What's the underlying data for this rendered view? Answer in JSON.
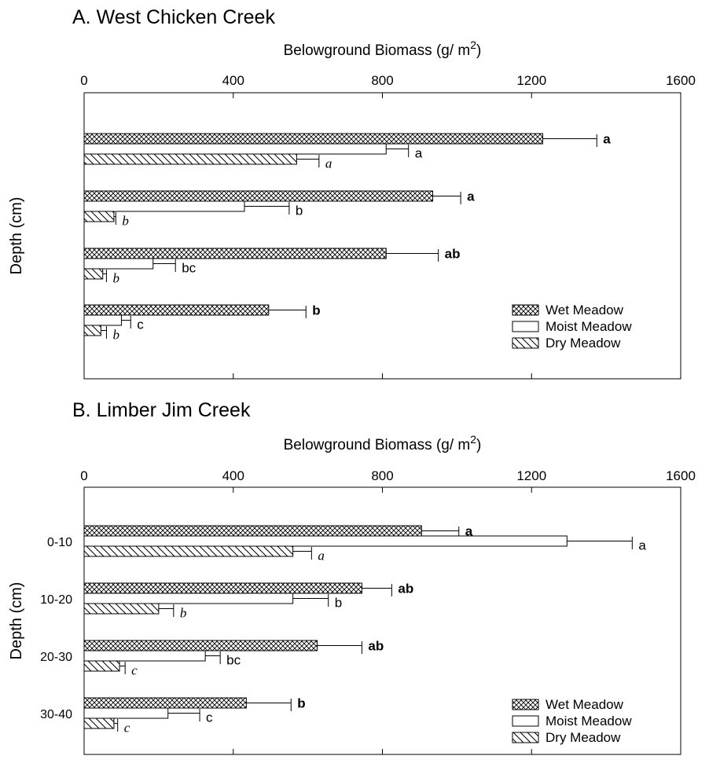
{
  "chart_data": [
    {
      "type": "bar",
      "orientation": "horizontal",
      "title": "A. West Chicken Creek",
      "xlabel": "Belowground Biomass (g/ m2)",
      "xlabel_main": "Belowground Biomass (g/ m",
      "xlabel_sup": "2",
      "xlabel_close": ")",
      "ylabel": "Depth (cm)",
      "xlim": [
        0,
        1600
      ],
      "xticks": [
        "0",
        "400",
        "800",
        "1200",
        "1600"
      ],
      "categories": [
        "",
        "",
        "",
        ""
      ],
      "series": [
        {
          "name": "Wet Meadow",
          "values": [
            1230,
            935,
            810,
            495
          ],
          "errors": [
            145,
            75,
            140,
            100
          ],
          "letters": [
            "a",
            "a",
            "ab",
            "b"
          ],
          "letter_style": "bold"
        },
        {
          "name": "Moist Meadow",
          "values": [
            810,
            430,
            185,
            100
          ],
          "errors": [
            60,
            120,
            60,
            25
          ],
          "letters": [
            "a",
            "b",
            "bc",
            "c"
          ],
          "letter_style": "plain"
        },
        {
          "name": "Dry Meadow",
          "values": [
            570,
            80,
            50,
            45
          ],
          "errors": [
            60,
            5,
            10,
            15
          ],
          "letters": [
            "a",
            "b",
            "b",
            "b"
          ],
          "letter_style": "italic"
        }
      ],
      "legend": "bottom-right"
    },
    {
      "type": "bar",
      "orientation": "horizontal",
      "title": "B. Limber Jim Creek",
      "xlabel": "Belowground Biomass (g/ m2)",
      "xlabel_main": "Belowground Biomass (g/ m",
      "xlabel_sup": "2",
      "xlabel_close": ")",
      "ylabel": "Depth (cm)",
      "xlim": [
        0,
        1600
      ],
      "xticks": [
        "0",
        "400",
        "800",
        "1200",
        "1600"
      ],
      "categories": [
        "0-10",
        "10-20",
        "20-30",
        "30-40"
      ],
      "series": [
        {
          "name": "Wet Meadow",
          "values": [
            905,
            745,
            625,
            435
          ],
          "errors": [
            100,
            80,
            120,
            120
          ],
          "letters": [
            "a",
            "ab",
            "ab",
            "b"
          ],
          "letter_style": "bold"
        },
        {
          "name": "Moist Meadow",
          "values": [
            1295,
            560,
            325,
            225
          ],
          "errors": [
            175,
            95,
            40,
            85
          ],
          "letters": [
            "a",
            "b",
            "bc",
            "c"
          ],
          "letter_style": "plain"
        },
        {
          "name": "Dry Meadow",
          "values": [
            560,
            200,
            95,
            80
          ],
          "errors": [
            50,
            40,
            15,
            10
          ],
          "letters": [
            "a",
            "b",
            "c",
            "c"
          ],
          "letter_style": "italic"
        }
      ],
      "legend": "bottom-right"
    }
  ]
}
